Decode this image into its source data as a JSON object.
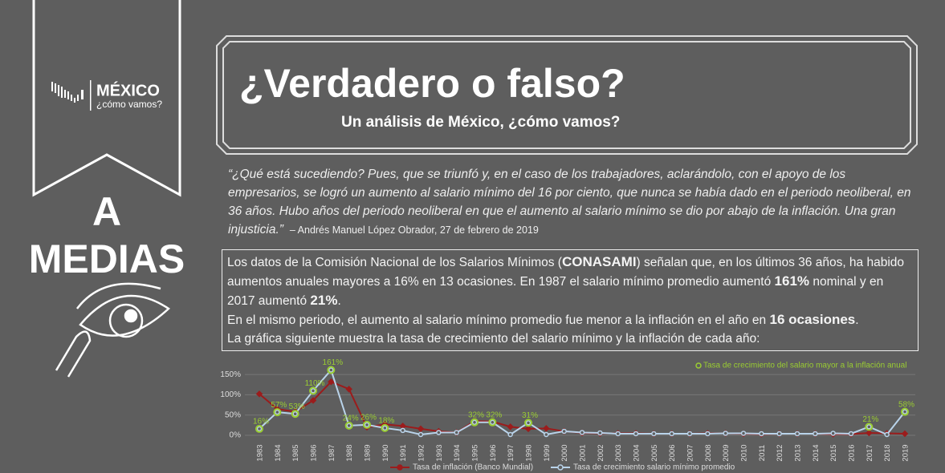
{
  "brand": {
    "name": "MÉXICO",
    "tagline": "¿cómo vamos?"
  },
  "verdict": [
    "A",
    "MEDIAS"
  ],
  "header": {
    "title": "¿Verdadero o falso?",
    "subtitle": "Un análisis de México, ¿cómo vamos?"
  },
  "quote": {
    "text": "“¿Qué está sucediendo? Pues, que se triunfó y, en el caso de los trabajadores, aclarándolo, con el apoyo de los empresarios, se logró un aumento al salario mínimo del 16 por ciento, que nunca se había dado en el periodo neoliberal, en 36 años. Hubo años del periodo neoliberal en que el aumento al salario mínimo se dio por abajo de la inflación. Una gran injusticia.”",
    "attribution": "– Andrés Manuel López Obrador, 27 de febrero de 2019"
  },
  "paragraph": [
    "Los datos de la Comisión Nacional de los Salarios Mínimos (",
    "CONASAMI",
    ") señalan que, en los últimos 36 años, ha habido aumentos anuales mayores a 16% en 13 ocasiones. En 1987 el salario mínimo promedio aumentó ",
    "161%",
    " nominal y en 2017 aumentó ",
    "21%",
    ".",
    "En el mismo periodo, el aumento al salario mínimo promedio fue menor a la inflación en el año en ",
    "16 ocasiones",
    ".",
    "La gráfica siguiente muestra la tasa de crecimiento del salario mínimo y la inflación de cada año:"
  ],
  "chart_data": {
    "type": "line",
    "categories": [
      "1983",
      "1984",
      "1985",
      "1986",
      "1987",
      "1988",
      "1989",
      "1990",
      "1991",
      "1992",
      "1993",
      "1994",
      "1995",
      "1996",
      "1997",
      "1998",
      "1999",
      "2000",
      "2001",
      "2002",
      "2003",
      "2004",
      "2005",
      "2006",
      "2007",
      "2008",
      "2009",
      "2010",
      "2011",
      "2012",
      "2013",
      "2014",
      "2015",
      "2016",
      "2017",
      "2018",
      "2019"
    ],
    "series": [
      {
        "name": "Tasa de inflación (Banco Mundial)",
        "color": "#9b1c1c",
        "values": [
          102,
          65,
          58,
          86,
          132,
          114,
          20,
          27,
          23,
          16,
          10,
          7,
          35,
          34,
          21,
          16,
          17,
          10,
          6,
          5,
          5,
          5,
          4,
          4,
          4,
          5,
          5,
          4,
          3,
          4,
          4,
          4,
          3,
          3,
          6,
          5,
          4
        ]
      },
      {
        "name": "Tasa de crecimiento salario mínimo promedio",
        "color": "#b9d3ea",
        "values": [
          16,
          57,
          53,
          110,
          161,
          24,
          26,
          18,
          12,
          2,
          7,
          7,
          32,
          32,
          2,
          31,
          2,
          10,
          7,
          6,
          4,
          4,
          4,
          4,
          4,
          4,
          5,
          5,
          4,
          4,
          4,
          4,
          5,
          4,
          21,
          2,
          58
        ]
      },
      {
        "name": "Tasa de crecimiento del salario mayor a la inflación anual",
        "color": "#9acd32",
        "values": [
          16,
          57,
          53,
          110,
          161,
          24,
          26,
          18,
          null,
          null,
          null,
          null,
          32,
          32,
          null,
          31,
          null,
          null,
          null,
          null,
          null,
          null,
          null,
          null,
          null,
          null,
          null,
          null,
          null,
          null,
          null,
          null,
          null,
          null,
          21,
          null,
          58
        ],
        "value_labels": [
          "16%",
          "57%",
          "53%",
          "110%",
          "161%",
          "24%",
          "26%",
          "18%",
          null,
          null,
          null,
          null,
          "32%",
          "32%",
          null,
          "31%",
          null,
          null,
          null,
          null,
          null,
          null,
          null,
          null,
          null,
          null,
          null,
          null,
          null,
          null,
          null,
          null,
          null,
          null,
          "21%",
          null,
          "58%"
        ]
      }
    ],
    "ylim": [
      0,
      170
    ],
    "yticks": [
      {
        "value": 0,
        "label": "0%"
      },
      {
        "value": 50,
        "label": "50%"
      },
      {
        "value": 100,
        "label": "100%"
      },
      {
        "value": 150,
        "label": "150%"
      }
    ],
    "grid": true
  }
}
